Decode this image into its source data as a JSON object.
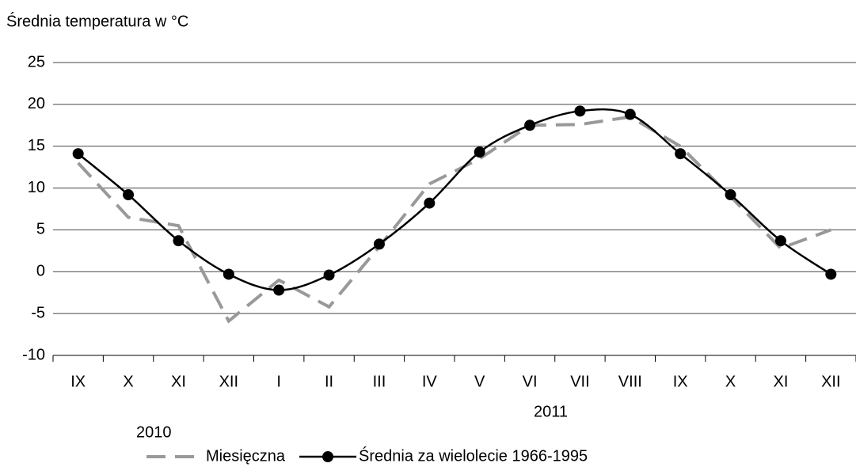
{
  "chart_data": {
    "type": "line",
    "title": "Średnia temperatura w °C",
    "categories": [
      "IX",
      "X",
      "XI",
      "XII",
      "I",
      "II",
      "III",
      "IV",
      "V",
      "VI",
      "VII",
      "VIII",
      "IX",
      "X",
      "XI",
      "XII"
    ],
    "annotations": [
      "2010",
      "2011"
    ],
    "series": [
      {
        "name": "Miesięczna",
        "color": "#999999",
        "dash": true,
        "marker": false,
        "smooth": false,
        "values": [
          13,
          6.5,
          5.5,
          -5.9,
          -1,
          -4.2,
          3,
          10.5,
          13.5,
          17.5,
          17.6,
          18.5,
          15,
          9,
          2.8,
          5
        ]
      },
      {
        "name": "Średnia za wielolecie 1966-1995",
        "color": "#000000",
        "dash": false,
        "marker": true,
        "smooth": true,
        "values": [
          14.1,
          9.2,
          3.7,
          -0.3,
          -2.2,
          -0.4,
          3.3,
          8.2,
          14.3,
          17.5,
          19.2,
          18.8,
          14.1,
          9.2,
          3.7,
          -0.3
        ]
      }
    ],
    "ylim": [
      -10,
      25
    ],
    "yticks": [
      -10,
      -5,
      0,
      5,
      10,
      15,
      20,
      25
    ],
    "grid": true,
    "legend": "bottom"
  }
}
